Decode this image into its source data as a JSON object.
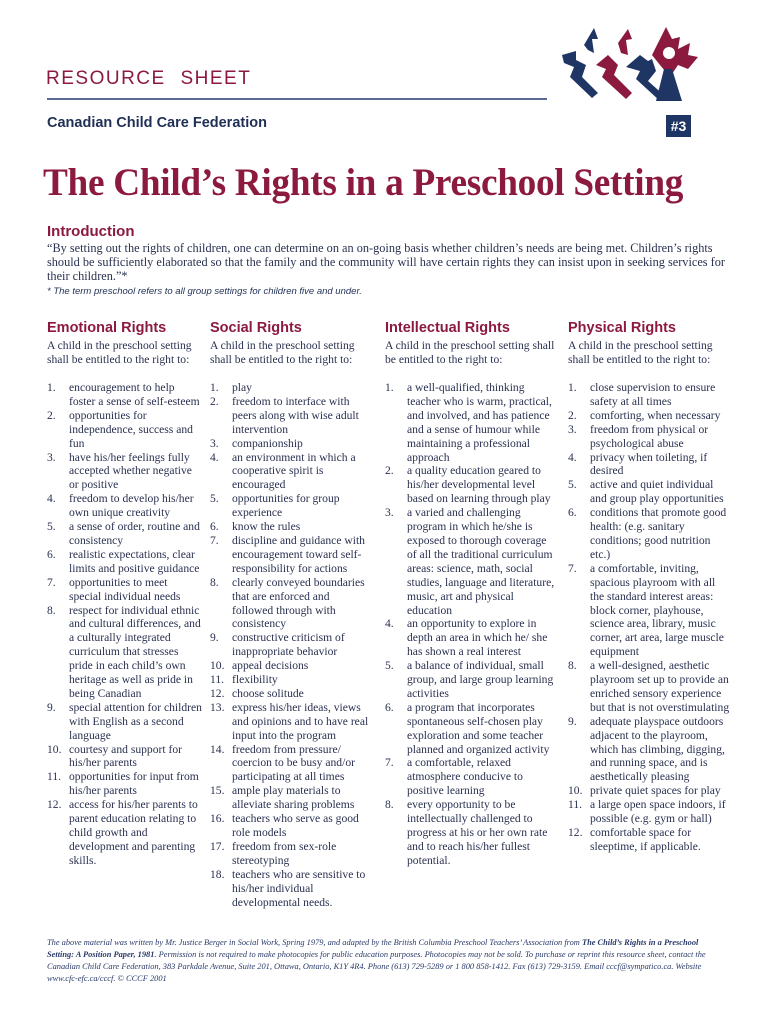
{
  "header": {
    "series": "RESOURCE SHEET",
    "organization": "Canadian Child Care Federation",
    "number": "#3",
    "colors": {
      "maroon": "#8b1a3e",
      "navy": "#1f3564"
    }
  },
  "title": "The Child’s Rights in a Preschool Setting",
  "intro": {
    "heading": "Introduction",
    "quote": "“By setting out the rights of children, one can determine on an on-going basis whether children’s needs are being met. Children’s rights should be sufficiently elaborated so that the family and the community will have certain rights they can insist upon in seeking services for their children.”*",
    "note": "* The term preschool refers to all group settings for children five and under."
  },
  "columns": [
    {
      "heading": "Emotional Rights",
      "lead": "A child in the preschool setting shall be entitled to the right to:",
      "items": [
        "encouragement to help foster a sense of self-esteem",
        "opportunities for independence, success and fun",
        "have his/her feelings fully accepted whether negative or positive",
        "freedom to develop his/her own unique creativity",
        "a sense of order, routine and consistency",
        "realistic expectations, clear limits and positive guidance",
        "opportunities to meet special individual needs",
        "respect for individual ethnic and cultural differences, and a culturally integrated curriculum that stresses pride in each child’s own heritage as well as pride in being Canadian",
        "special attention for children with English as a second language",
        "courtesy and support for his/her parents",
        "opportunities for input from his/her parents",
        "access for his/her parents to parent education relating to child growth and development and parenting skills."
      ]
    },
    {
      "heading": "Social Rights",
      "lead": "A child in the preschool setting shall be entitled to the right to:",
      "items": [
        "play",
        "freedom to interface with peers along with wise adult intervention",
        "companionship",
        "an environment in which a cooperative spirit is encouraged",
        "opportunities for group experience",
        "know the rules",
        "discipline and guidance with encouragement toward self-responsibility for actions",
        "clearly conveyed boundaries that are enforced and followed through with consistency",
        "constructive criticism of inappropriate behavior",
        "appeal decisions",
        "flexibility",
        "choose solitude",
        "express his/her ideas, views and opinions and to have real input into the program",
        "freedom from pressure/ coercion to be busy and/or participating at all times",
        "ample play materials to alleviate sharing problems",
        "teachers who serve as good role models",
        "freedom from sex-role stereotyping",
        "teachers who are sensitive to his/her individual developmental needs."
      ]
    },
    {
      "heading": "Intellectual Rights",
      "lead": "A child in the preschool setting shall be entitled to the right to:",
      "items": [
        "a well-qualified, thinking teacher who is warm, practical, and involved, and has patience and a sense of humour while maintaining a professional approach",
        "a quality education geared to his/her developmental level based on learning through play",
        "a varied and challenging program in which he/she is exposed to thorough coverage of all the traditional curriculum areas: science, math, social studies, language and literature, music, art and physical education",
        "an opportunity to explore in depth an area in which he/ she has shown a real interest",
        "a balance of individual, small group, and large group learning activities",
        "a program that incorporates spontaneous self-chosen play exploration and some teacher planned and organized activity",
        "a comfortable, relaxed atmosphere conducive to positive learning",
        "every opportunity to be intellectually challenged to progress at his or her own rate and to reach his/her fullest potential."
      ]
    },
    {
      "heading": "Physical Rights",
      "lead": "A child in the preschool setting shall be entitled to the right to:",
      "items": [
        "close supervision to ensure safety at all times",
        "comforting, when necessary",
        "freedom from physical or psychological abuse",
        "privacy when toileting, if desired",
        "active and quiet individual and group play opportunities",
        "conditions that promote good health: (e.g. sanitary conditions; good nutrition etc.)",
        "a comfortable, inviting, spacious playroom with all the standard interest areas: block corner, playhouse, science area, library, music corner, art area, large muscle equipment",
        "a well-designed, aesthetic playroom set up to provide an enriched sensory experience but that is not overstimulating",
        "adequate playspace outdoors adjacent to the playroom, which has climbing, digging, and running space, and is aesthetically pleasing",
        "private quiet spaces for play",
        "a large open space indoors, if possible (e.g. gym or hall)",
        "comfortable space for sleeptime, if applicable."
      ]
    }
  ],
  "footer": {
    "part1": "The above material was written by Mr. Justice Berger in Social Work, Spring 1979, and adapted by the British Columbia Preschool Teachers’ Association from ",
    "source": "The Child’s Rights in a Preschool Setting: A Position Paper, 1981",
    "part2": ". Permission is not required to make photocopies for public education purposes. Photocopies may not be sold. To purchase or reprint this resource sheet, contact the Canadian Child Care Federation, 383 Parkdale Avenue, Suite 201, Ottawa, Ontario, K1Y 4R4. Phone (613) 729-5289 or 1 800 858-1412. Fax (613) 729-3159. Email cccf@sympatico.ca. Website www.cfc-efc.ca/cccf. © CCCF 2001"
  }
}
